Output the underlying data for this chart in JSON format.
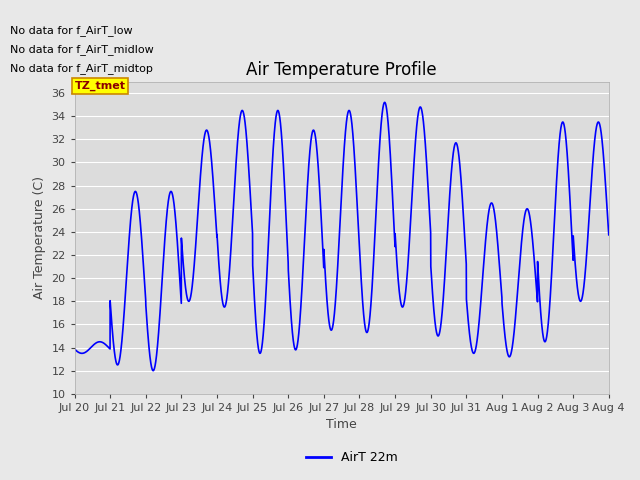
{
  "title": "Air Temperature Profile",
  "xlabel": "Time",
  "ylabel": "Air Temperature (C)",
  "ylim": [
    10,
    37
  ],
  "yticks": [
    10,
    12,
    14,
    16,
    18,
    20,
    22,
    24,
    26,
    28,
    30,
    32,
    34,
    36
  ],
  "line_color": "blue",
  "line_label": "AirT 22m",
  "bg_color": "#e8e8e8",
  "plot_bg_color": "#dcdcdc",
  "no_data_texts": [
    "No data for f_AirT_low",
    "No data for f_AirT_midlow",
    "No data for f_AirT_midtop"
  ],
  "tz_label": "TZ_tmet",
  "title_fontsize": 12,
  "axis_label_fontsize": 9,
  "tick_label_fontsize": 8,
  "x_tick_labels": [
    "Jul 20",
    "Jul 21",
    "Jul 22",
    "Jul 23",
    "Jul 24",
    "Jul 25",
    "Jul 26",
    "Jul 27",
    "Jul 28",
    "Jul 29",
    "Jul 30",
    "Jul 31",
    "Aug 1",
    "Aug 2",
    "Aug 3",
    "Aug 4"
  ],
  "day_mins": [
    13.5,
    12.5,
    12.0,
    18.0,
    17.5,
    13.5,
    13.8,
    15.5,
    15.3,
    17.5,
    15.0,
    13.5,
    13.2,
    14.5,
    18.0
  ],
  "day_maxs": [
    14.5,
    27.5,
    27.5,
    32.8,
    34.5,
    34.5,
    32.8,
    34.5,
    35.2,
    34.8,
    31.7,
    26.5,
    26.0,
    33.5,
    33.5
  ]
}
